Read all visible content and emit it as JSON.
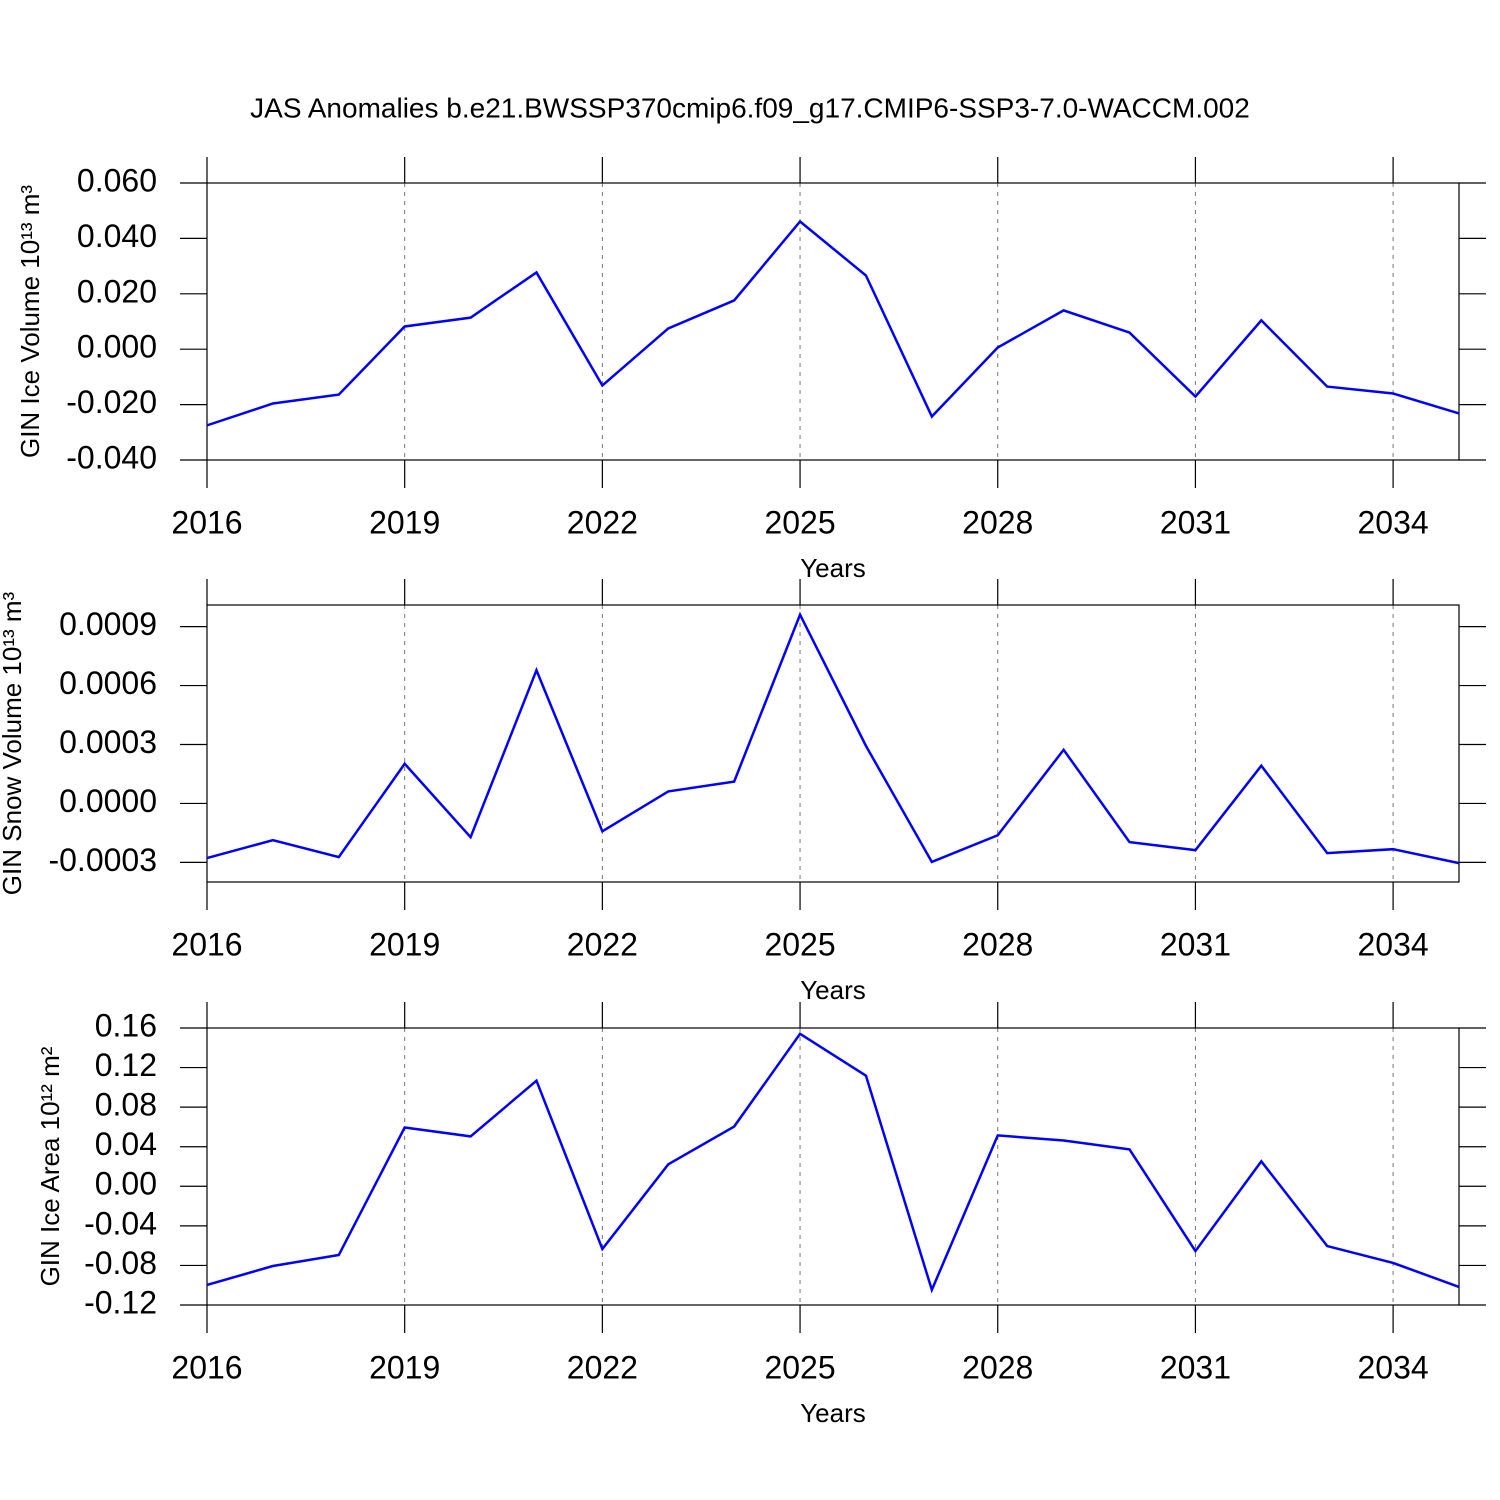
{
  "title": "JAS Anomalies b.e21.BWSSP370cmip6.f09_g17.CMIP6-SSP3-7.0-WACCM.002",
  "chart_data": [
    {
      "type": "line",
      "xlabel": "Years",
      "ylabel": "GIN Ice Volume 10¹³ m³",
      "x": [
        2016,
        2017,
        2018,
        2019,
        2020,
        2021,
        2022,
        2023,
        2024,
        2025,
        2026,
        2027,
        2028,
        2029,
        2030,
        2031,
        2032,
        2033,
        2034,
        2035
      ],
      "series": [
        {
          "color": "#0000ff",
          "values": [
            -0.0275,
            -0.0196,
            -0.0164,
            0.0082,
            0.0114,
            0.0277,
            -0.0131,
            0.0075,
            0.0176,
            0.0461,
            0.0266,
            -0.0243,
            0.0006,
            0.014,
            0.006,
            -0.0171,
            0.0104,
            -0.0135,
            -0.016,
            -0.0232
          ]
        }
      ],
      "xlim": [
        2016,
        2035
      ],
      "xticks": [
        2016,
        2019,
        2022,
        2025,
        2028,
        2031,
        2034
      ],
      "ylim": [
        -0.04,
        0.06
      ],
      "yticks": [
        {
          "value": -0.04,
          "label": "-0.040"
        },
        {
          "value": -0.02,
          "label": "-0.020"
        },
        {
          "value": 0,
          "label": "0.000"
        },
        {
          "value": 0.02,
          "label": "0.020"
        },
        {
          "value": 0.04,
          "label": "0.040"
        },
        {
          "value": 0.06,
          "label": "0.060"
        }
      ],
      "grid": true
    },
    {
      "type": "line",
      "xlabel": "Years",
      "ylabel": "GIN Snow Volume 10¹³ m³",
      "x": [
        2016,
        2017,
        2018,
        2019,
        2020,
        2021,
        2022,
        2023,
        2024,
        2025,
        2026,
        2027,
        2028,
        2029,
        2030,
        2031,
        2032,
        2033,
        2034,
        2035
      ],
      "series": [
        {
          "color": "#0000ff",
          "values": [
            -0.000278,
            -0.000187,
            -0.000273,
            0.000202,
            -0.000172,
            0.000678,
            -0.000142,
            6.1e-05,
            0.000111,
            0.000961,
            0.000293,
            -0.000298,
            -0.000162,
            0.000273,
            -0.000197,
            -0.000238,
            0.000192,
            -0.000253,
            -0.000233,
            -0.000304
          ]
        }
      ],
      "xlim": [
        2016,
        2035
      ],
      "xticks": [
        2016,
        2019,
        2022,
        2025,
        2028,
        2031,
        2034
      ],
      "ylim": [
        -0.0004,
        0.00101
      ],
      "yticks": [
        {
          "value": -0.0003,
          "label": "-0.0003"
        },
        {
          "value": 0,
          "label": "0.0000"
        },
        {
          "value": 0.0003,
          "label": "0.0003"
        },
        {
          "value": 0.0006,
          "label": "0.0006"
        },
        {
          "value": 0.0009,
          "label": "0.0009"
        }
      ],
      "grid": true
    },
    {
      "type": "line",
      "xlabel": "Years",
      "ylabel": "GIN Ice Area 10¹² m²",
      "x": [
        2016,
        2017,
        2018,
        2019,
        2020,
        2021,
        2022,
        2023,
        2024,
        2025,
        2026,
        2027,
        2028,
        2029,
        2030,
        2031,
        2032,
        2033,
        2034,
        2035
      ],
      "series": [
        {
          "color": "#0000ff",
          "values": [
            -0.0997,
            -0.0806,
            -0.0695,
            0.0594,
            0.0504,
            0.1067,
            -0.0634,
            0.0222,
            0.0604,
            0.1541,
            0.1118,
            -0.1047,
            0.0514,
            0.0463,
            0.0373,
            -0.0655,
            0.0252,
            -0.0604,
            -0.0775,
            -0.1017
          ]
        }
      ],
      "xlim": [
        2016,
        2035
      ],
      "xticks": [
        2016,
        2019,
        2022,
        2025,
        2028,
        2031,
        2034
      ],
      "ylim": [
        -0.12,
        0.16
      ],
      "yticks": [
        {
          "value": -0.12,
          "label": "-0.12"
        },
        {
          "value": -0.08,
          "label": "-0.08"
        },
        {
          "value": -0.04,
          "label": "-0.04"
        },
        {
          "value": 0,
          "label": "0.00"
        },
        {
          "value": 0.04,
          "label": "0.04"
        },
        {
          "value": 0.08,
          "label": "0.08"
        },
        {
          "value": 0.12,
          "label": "0.12"
        },
        {
          "value": 0.16,
          "label": "0.16"
        }
      ],
      "grid": true
    }
  ]
}
